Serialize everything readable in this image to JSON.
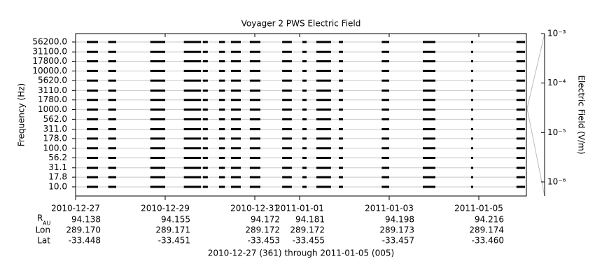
{
  "chart_data": {
    "type": "spectrogram",
    "title": "Voyager 2 PWS Electric Field",
    "ylabel": "Frequency (Hz)",
    "y2label": "Electric Field (V/m)",
    "color": "#000000",
    "grid": true,
    "yscale": "log",
    "y2scale": "log",
    "xlim": [
      "2010-12-27T00:00",
      "2011-01-06T01:30"
    ],
    "xticks": [
      "2010-12-27",
      "2010-12-29",
      "2010-12-31",
      "2011-01-01",
      "2011-01-03",
      "2011-01-05"
    ],
    "ylim": [
      5.8,
      92700
    ],
    "yticks": [
      {
        "value": 10,
        "label": "10.0"
      },
      {
        "value": 17.8,
        "label": "17.8"
      },
      {
        "value": 31.1,
        "label": "31.1"
      },
      {
        "value": 56.2,
        "label": "56.2"
      },
      {
        "value": 100,
        "label": "100.0"
      },
      {
        "value": 178,
        "label": "178.0"
      },
      {
        "value": 311,
        "label": "311.0"
      },
      {
        "value": 562,
        "label": "562.0"
      },
      {
        "value": 1000,
        "label": "1000.0"
      },
      {
        "value": 1780,
        "label": "1780.0"
      },
      {
        "value": 3110,
        "label": "3110.0"
      },
      {
        "value": 5620,
        "label": "5620.0"
      },
      {
        "value": 10000,
        "label": "10000.0"
      },
      {
        "value": 17800,
        "label": "17800.0"
      },
      {
        "value": 31100,
        "label": "31100.0"
      },
      {
        "value": 56200,
        "label": "56200.0"
      }
    ],
    "y2lim": [
      5.2e-07,
      0.001
    ],
    "y2ticks": [
      {
        "value": 1e-06,
        "label": "10⁻⁶"
      },
      {
        "value": 1e-05,
        "label": "10⁻⁵"
      },
      {
        "value": 0.0001,
        "label": "10⁻⁴"
      },
      {
        "value": 0.001,
        "label": "10⁻³"
      }
    ],
    "segments": [
      [
        "2010-12-27T06:00",
        "2010-12-27T12:00"
      ],
      [
        "2010-12-27T17:30",
        "2010-12-27T21:45"
      ],
      [
        "2010-12-28T16:00",
        "2010-12-29T00:00"
      ],
      [
        "2010-12-29T10:00",
        "2010-12-29T19:10"
      ],
      [
        "2010-12-29T20:10",
        "2010-12-29T22:50"
      ],
      [
        "2010-12-30T04:50",
        "2010-12-30T08:00"
      ],
      [
        "2010-12-30T11:15",
        "2010-12-30T16:30"
      ],
      [
        "2010-12-30T21:20",
        "2010-12-31T03:00"
      ],
      [
        "2010-12-31T14:40",
        "2010-12-31T19:50"
      ],
      [
        "2011-01-01T01:30",
        "2011-01-01T03:45"
      ],
      [
        "2011-01-01T09:00",
        "2011-01-01T16:50"
      ],
      [
        "2011-01-01T21:00",
        "2011-01-01T23:15"
      ],
      [
        "2011-01-02T20:00",
        "2011-01-03T00:00"
      ],
      [
        "2011-01-03T18:00",
        "2011-01-04T00:45"
      ],
      [
        "2011-01-04T19:50",
        "2011-01-04T21:00"
      ],
      [
        "2011-01-05T20:10",
        "2011-01-06T00:45"
      ]
    ],
    "ephemeris": [
      {
        "label": "R",
        "subscript": "AU",
        "values": [
          "94.138",
          "94.155",
          "94.172",
          "94.181",
          "94.198",
          "94.216"
        ]
      },
      {
        "label": "Lon",
        "values": [
          "289.170",
          "289.171",
          "289.172",
          "289.172",
          "289.173",
          "289.174"
        ]
      },
      {
        "label": "Lat",
        "values": [
          "-33.448",
          "-33.451",
          "-33.453",
          "-33.455",
          "-33.457",
          "-33.460"
        ]
      }
    ],
    "footer": "2010-12-27 (361) through 2011-01-05 (005)"
  }
}
